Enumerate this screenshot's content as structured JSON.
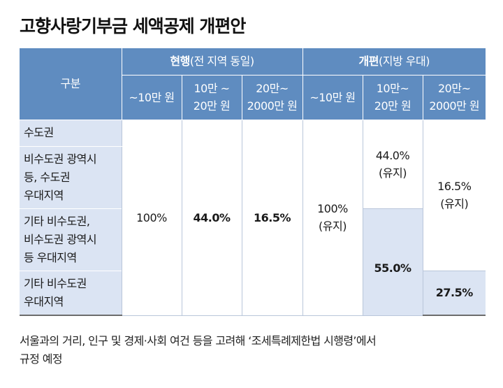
{
  "title": "고향사랑기부금 세액공제 개편안",
  "table": {
    "corner": "구분",
    "current_group": {
      "bold": "현행",
      "rest": "(전 지역 동일)"
    },
    "reform_group": {
      "bold": "개편",
      "rest": "(지방 우대)"
    },
    "brackets": {
      "b1": [
        "~10만 원"
      ],
      "b2": [
        "10만 ~",
        "20만 원"
      ],
      "b3": [
        "20만~",
        "2000만 원"
      ],
      "r1": [
        "~10만 원"
      ],
      "r2": [
        "10만~",
        "20만 원"
      ],
      "r3": [
        "20만~",
        "2000만 원"
      ]
    },
    "regions": [
      [
        "수도권"
      ],
      [
        "비수도권 광역시",
        "등, 수도권",
        "우대지역"
      ],
      [
        "기타 비수도권,",
        "비수도권 광역시",
        "등 우대지역"
      ],
      [
        "기타 비수도권",
        "우대지역"
      ]
    ],
    "values": {
      "current_1": "100%",
      "current_2": "44.0%",
      "current_3": "16.5%",
      "reform_1": [
        "100%",
        "(유지)"
      ],
      "reform_2_top": [
        "44.0%",
        "(유지)"
      ],
      "reform_2_bottom": "55.0%",
      "reform_3_top": [
        "16.5%",
        "(유지)"
      ],
      "reform_3_bottom": "27.5%"
    }
  },
  "note": [
    "서울과의 거리, 인구 및 경제·사회 여건 등을 고려해 ‘조세특례제한법 시행령’에서",
    "규정 예정"
  ]
}
